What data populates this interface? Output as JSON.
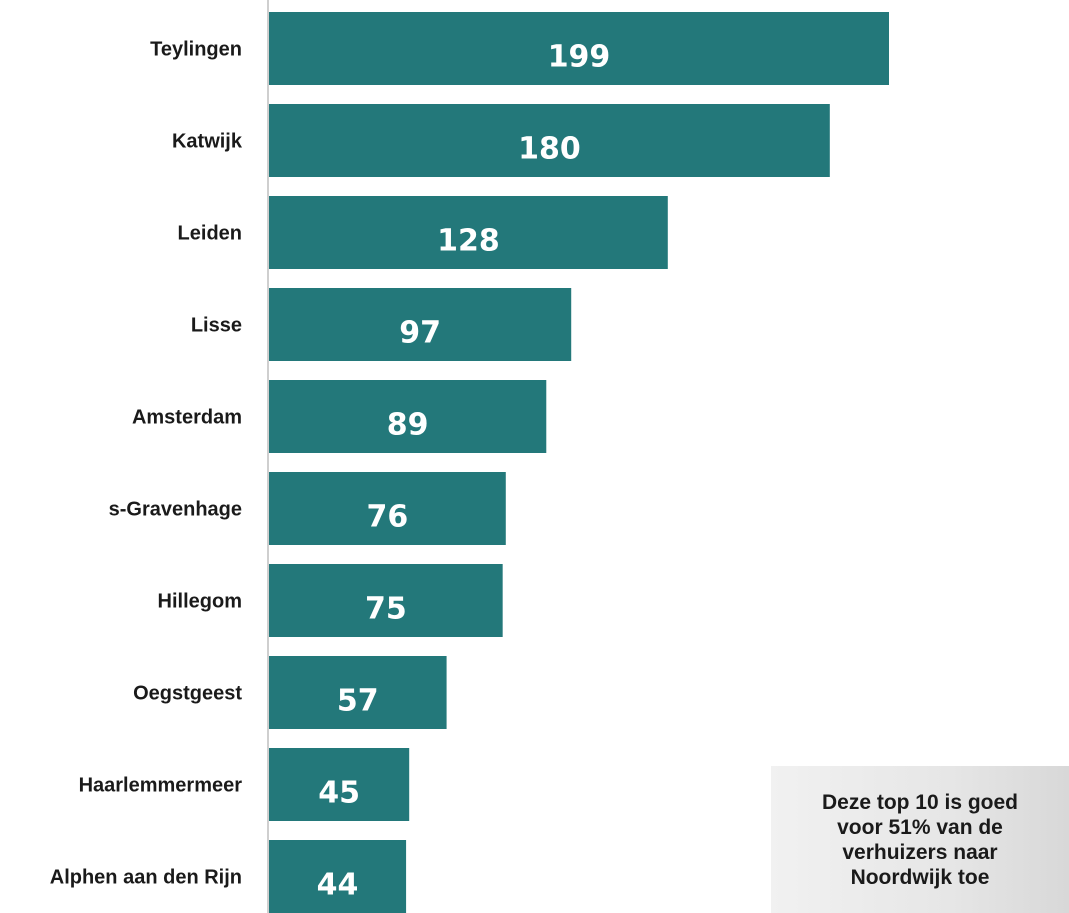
{
  "chart_data": {
    "type": "bar",
    "orientation": "horizontal",
    "categories": [
      "Teylingen",
      "Katwijk",
      "Leiden",
      "Lisse",
      "Amsterdam",
      "s-Gravenhage",
      "Hillegom",
      "Oegstgeest",
      "Haarlemmermeer",
      "Alphen aan den Rijn"
    ],
    "values": [
      199,
      180,
      128,
      97,
      89,
      76,
      75,
      57,
      45,
      44
    ],
    "value_labels": [
      "199",
      "180",
      "128",
      "97",
      "89",
      "76",
      "75",
      "57",
      "45",
      "44"
    ],
    "xlim": [
      0,
      199
    ],
    "bar_color": "#23787a",
    "axis_color": "#bfbfbf",
    "grid": false,
    "legend": "none"
  },
  "note": {
    "text": "Deze top 10 is goed\nvoor 51% van de\nverhuizers naar\nNoordwijk toe"
  }
}
